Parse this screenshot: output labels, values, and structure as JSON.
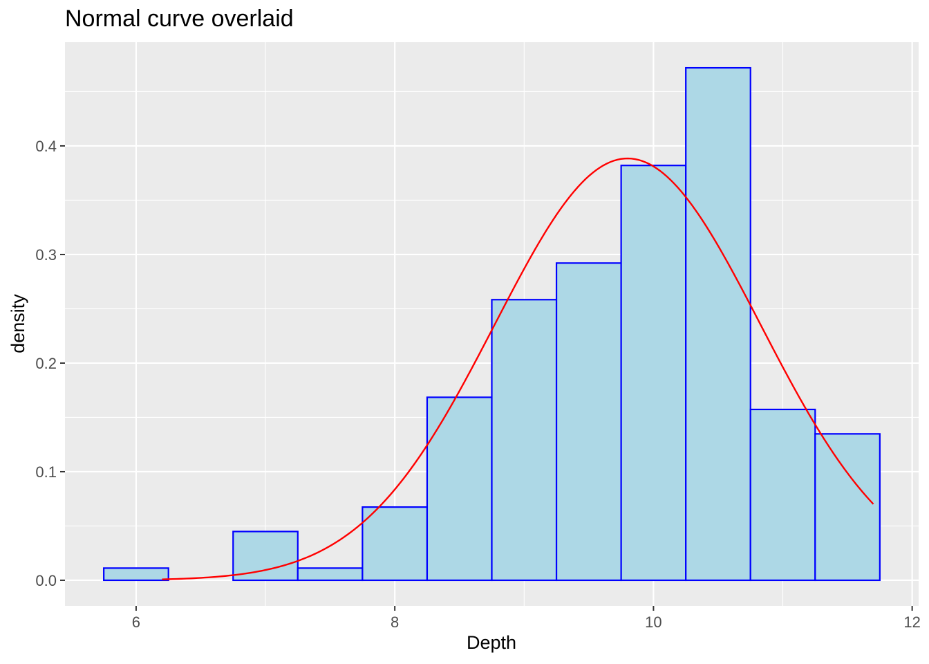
{
  "chart_data": {
    "type": "bar",
    "title": "Normal curve overlaid",
    "xlabel": "Depth",
    "ylabel": "density",
    "xlim": [
      5.45,
      12.05
    ],
    "ylim": [
      -0.0236,
      0.4955
    ],
    "x_ticks": [
      6,
      8,
      10,
      12
    ],
    "y_ticks": [
      0.0,
      0.1,
      0.2,
      0.3,
      0.4
    ],
    "x_tick_labels": [
      "6",
      "8",
      "10",
      "12"
    ],
    "y_tick_labels": [
      "0.0",
      "0.1",
      "0.2",
      "0.3",
      "0.4"
    ],
    "grid": true,
    "legend": "none",
    "bin_width": 0.5,
    "bins": [
      {
        "x0": 5.75,
        "x1": 6.25,
        "density": 0.0112
      },
      {
        "x0": 6.25,
        "x1": 6.75,
        "density": 0.0
      },
      {
        "x0": 6.75,
        "x1": 7.25,
        "density": 0.0449
      },
      {
        "x0": 7.25,
        "x1": 7.75,
        "density": 0.0112
      },
      {
        "x0": 7.75,
        "x1": 8.25,
        "density": 0.0674
      },
      {
        "x0": 8.25,
        "x1": 8.75,
        "density": 0.1685
      },
      {
        "x0": 8.75,
        "x1": 9.25,
        "density": 0.2584
      },
      {
        "x0": 9.25,
        "x1": 9.75,
        "density": 0.2921
      },
      {
        "x0": 9.75,
        "x1": 10.25,
        "density": 0.382
      },
      {
        "x0": 10.25,
        "x1": 10.75,
        "density": 0.4719
      },
      {
        "x0": 10.75,
        "x1": 11.25,
        "density": 0.1573
      },
      {
        "x0": 11.25,
        "x1": 11.75,
        "density": 0.1348
      }
    ],
    "overlay": {
      "type": "line",
      "distribution": "normal",
      "mean": 9.8,
      "sd": 1.027,
      "x_range": [
        6.2,
        11.7
      ]
    },
    "colors": {
      "panel_background": "#EBEBEB",
      "gridline": "#FFFFFF",
      "bar_fill": "#ADD8E6",
      "bar_outline": "#0000FF",
      "curve": "#FF0000",
      "tick_text": "#4D4D4D",
      "tick_mark": "#333333",
      "text": "#000000"
    }
  }
}
